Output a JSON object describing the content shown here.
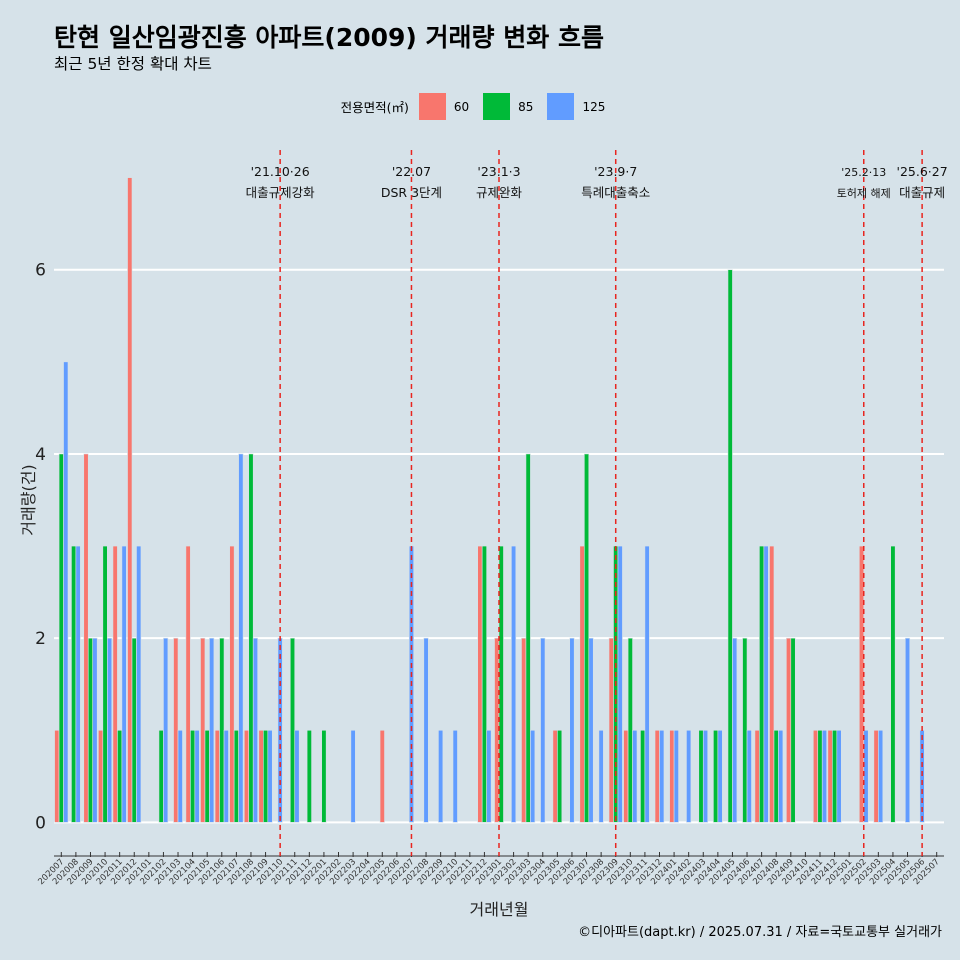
{
  "title": "탄현 일산임광진흥 아파트(2009) 거래량 변화 흐름",
  "subtitle": "최근 5년 한정 확대 차트",
  "caption": "©디아파트(dapt.kr) / 2025.07.31 / 자료=국토교통부 실거래가",
  "colors": {
    "60": "#f8766d",
    "85": "#00ba38",
    "125": "#619cff",
    "background": "#d6e2e9",
    "gridline": "#ffffff",
    "event_line": "#e8251f"
  },
  "legend": {
    "title": "전용면적(㎡)",
    "items": [
      {
        "label": "60",
        "color": "#f8766d"
      },
      {
        "label": "85",
        "color": "#00ba38"
      },
      {
        "label": "125",
        "color": "#619cff"
      }
    ]
  },
  "chart_data": {
    "type": "bar",
    "xlabel": "거래년월",
    "ylabel": "거래량(건)",
    "ylim": [
      -0.3,
      7.3
    ],
    "yticks": [
      0,
      2,
      4,
      6
    ],
    "grid": true,
    "legend_position": "top",
    "categories": [
      "202007",
      "202008",
      "202009",
      "202010",
      "202011",
      "202012",
      "202101",
      "202102",
      "202103",
      "202104",
      "202105",
      "202106",
      "202107",
      "202108",
      "202109",
      "202110",
      "202111",
      "202112",
      "202201",
      "202202",
      "202203",
      "202204",
      "202205",
      "202206",
      "202207",
      "202208",
      "202209",
      "202210",
      "202211",
      "202212",
      "202301",
      "202302",
      "202303",
      "202304",
      "202305",
      "202306",
      "202307",
      "202308",
      "202309",
      "202310",
      "202311",
      "202312",
      "202401",
      "202402",
      "202403",
      "202404",
      "202405",
      "202406",
      "202407",
      "202408",
      "202409",
      "202410",
      "202411",
      "202412",
      "202501",
      "202502",
      "202503",
      "202504",
      "202505",
      "202506",
      "202507"
    ],
    "series": [
      {
        "name": "60",
        "values": [
          1,
          0,
          4,
          1,
          3,
          7,
          0,
          0,
          2,
          3,
          2,
          1,
          3,
          1,
          1,
          0,
          0,
          0,
          0,
          0,
          0,
          0,
          1,
          0,
          0,
          0,
          0,
          0,
          0,
          3,
          2,
          0,
          2,
          0,
          1,
          0,
          3,
          0,
          2,
          1,
          0,
          1,
          1,
          0,
          0,
          0,
          0,
          0,
          1,
          3,
          2,
          0,
          1,
          1,
          0,
          3,
          1,
          0,
          0,
          0,
          0
        ]
      },
      {
        "name": "85",
        "values": [
          4,
          3,
          2,
          3,
          1,
          2,
          0,
          1,
          0,
          1,
          1,
          2,
          1,
          4,
          1,
          0,
          2,
          1,
          1,
          0,
          0,
          0,
          0,
          0,
          0,
          0,
          0,
          0,
          0,
          3,
          3,
          0,
          4,
          0,
          1,
          0,
          4,
          0,
          3,
          2,
          1,
          0,
          0,
          0,
          1,
          1,
          6,
          2,
          3,
          1,
          2,
          0,
          1,
          1,
          0,
          0,
          0,
          3,
          0,
          0,
          0
        ]
      },
      {
        "name": "125",
        "values": [
          5,
          3,
          2,
          2,
          3,
          3,
          0,
          2,
          1,
          1,
          2,
          1,
          4,
          2,
          1,
          2,
          1,
          0,
          0,
          0,
          1,
          0,
          0,
          0,
          3,
          2,
          1,
          1,
          0,
          1,
          0,
          3,
          1,
          2,
          0,
          2,
          2,
          1,
          3,
          1,
          3,
          1,
          1,
          1,
          1,
          1,
          2,
          1,
          3,
          1,
          0,
          0,
          1,
          1,
          0,
          1,
          1,
          0,
          2,
          1,
          0
        ]
      }
    ],
    "events": [
      {
        "at": "202110",
        "date": "'21.10·26",
        "label": "대출규제강화"
      },
      {
        "at": "202207",
        "date": "'22.07",
        "label": "DSR 3단계"
      },
      {
        "at": "202301",
        "date": "'23.1·3",
        "label": "규제완화"
      },
      {
        "at": "202309",
        "date": "'23.9·7",
        "label": "특례대출축소"
      },
      {
        "at": "202502",
        "date": "'25.2·13",
        "label": "토허제 해제"
      },
      {
        "at": "202506",
        "date": "'25.6·27",
        "label": "대출규제"
      }
    ]
  }
}
